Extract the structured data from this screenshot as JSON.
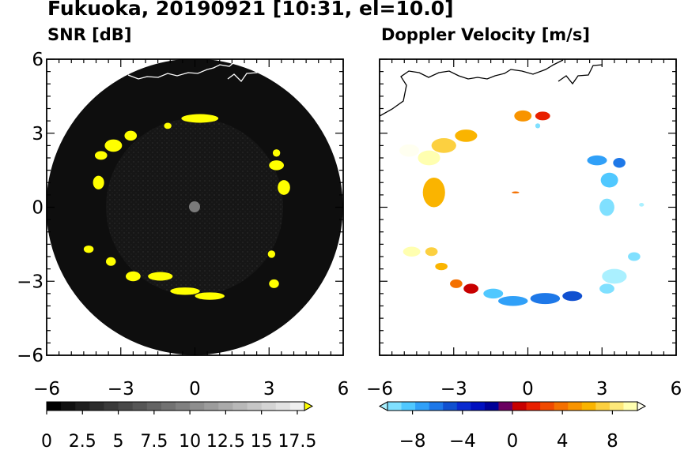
{
  "figure": {
    "title": "Fukuoka, 20190921 [10:31, el=10.0]"
  },
  "chart_data": [
    {
      "type": "heatmap",
      "title": "SNR [dB]",
      "xlim": [
        -6,
        6
      ],
      "ylim": [
        -6,
        6
      ],
      "xticks": [
        "−6",
        "−3",
        "0",
        "3",
        "6"
      ],
      "yticks": [
        "6",
        "3",
        "0",
        "−3",
        "−6"
      ],
      "grid": false,
      "range_rings_radius": 6,
      "colorbar": {
        "min": 0,
        "max": 18,
        "extend": "max",
        "tick_values": [
          0,
          2.5,
          5,
          7.5,
          10,
          12.5,
          15,
          17.5
        ],
        "tick_labels": [
          "0",
          "2.5",
          "5",
          "7.5",
          "10",
          "12.5",
          "15",
          "17.5"
        ],
        "colors": [
          "#000000",
          "#101010",
          "#1e1e1e",
          "#2c2c2c",
          "#3a3a3a",
          "#484848",
          "#565656",
          "#646464",
          "#727272",
          "#808080",
          "#8e8e8e",
          "#9c9c9c",
          "#aaaaaa",
          "#b8b8b8",
          "#c6c6c6",
          "#d4d4d4",
          "#e2e2e2",
          "#f0f0f0",
          "#ffff00"
        ]
      },
      "echo_color": "#ffff00",
      "echoes": [
        {
          "x": -1.4,
          "y": -2.8,
          "w": 1.0,
          "h": 0.35,
          "value": 18
        },
        {
          "x": -0.4,
          "y": -3.4,
          "w": 1.2,
          "h": 0.3,
          "value": 18
        },
        {
          "x": 0.6,
          "y": -3.6,
          "w": 1.2,
          "h": 0.3,
          "value": 18
        },
        {
          "x": -2.5,
          "y": -2.8,
          "w": 0.6,
          "h": 0.4,
          "value": 18
        },
        {
          "x": -3.4,
          "y": -2.2,
          "w": 0.4,
          "h": 0.35,
          "value": 18
        },
        {
          "x": -4.3,
          "y": -1.7,
          "w": 0.4,
          "h": 0.3,
          "value": 18
        },
        {
          "x": -3.9,
          "y": 1.0,
          "w": 0.45,
          "h": 0.55,
          "value": 18
        },
        {
          "x": -3.3,
          "y": 2.5,
          "w": 0.7,
          "h": 0.5,
          "value": 18
        },
        {
          "x": -3.8,
          "y": 2.1,
          "w": 0.5,
          "h": 0.35,
          "value": 18
        },
        {
          "x": -2.6,
          "y": 2.9,
          "w": 0.5,
          "h": 0.4,
          "value": 18
        },
        {
          "x": -1.1,
          "y": 3.3,
          "w": 0.3,
          "h": 0.25,
          "value": 18
        },
        {
          "x": 0.2,
          "y": 3.6,
          "w": 1.5,
          "h": 0.35,
          "value": 18
        },
        {
          "x": 3.3,
          "y": 1.7,
          "w": 0.6,
          "h": 0.4,
          "value": 18
        },
        {
          "x": 3.6,
          "y": 0.8,
          "w": 0.5,
          "h": 0.6,
          "value": 18
        },
        {
          "x": 3.2,
          "y": -3.1,
          "w": 0.4,
          "h": 0.35,
          "value": 18
        },
        {
          "x": 3.1,
          "y": -1.9,
          "w": 0.3,
          "h": 0.3,
          "value": 18
        },
        {
          "x": 3.3,
          "y": 2.2,
          "w": 0.3,
          "h": 0.3,
          "value": 18
        }
      ]
    },
    {
      "type": "heatmap",
      "title": "Doppler Velocity [m/s]",
      "xlim": [
        -6,
        6
      ],
      "ylim": [
        -6,
        6
      ],
      "xticks": [
        "−6",
        "−3",
        "0",
        "3",
        "6"
      ],
      "yticks": [],
      "grid": false,
      "colorbar": {
        "min": -10,
        "max": 10,
        "extend": "both",
        "tick_values": [
          -8,
          -4,
          0,
          4,
          8
        ],
        "tick_labels": [
          "−8",
          "−4",
          "0",
          "4",
          "8"
        ],
        "colors": [
          "#aaf0ff",
          "#80e0ff",
          "#50c8ff",
          "#30a0f8",
          "#1e78e8",
          "#1050d0",
          "#0a2ad0",
          "#0010c0",
          "#000098",
          "#6a0060",
          "#c80000",
          "#e82000",
          "#f04a00",
          "#f47000",
          "#f89400",
          "#fab400",
          "#fcd040",
          "#fde87a",
          "#ffffb0",
          "#fffff0"
        ]
      },
      "echoes": [
        {
          "x": -4.8,
          "y": 2.3,
          "w": 0.8,
          "h": 0.5,
          "value": 9
        },
        {
          "x": -4.0,
          "y": 2.0,
          "w": 0.9,
          "h": 0.6,
          "value": 8
        },
        {
          "x": -3.4,
          "y": 2.5,
          "w": 1.0,
          "h": 0.6,
          "value": 6
        },
        {
          "x": -2.5,
          "y": 2.9,
          "w": 0.9,
          "h": 0.5,
          "value": 5
        },
        {
          "x": -3.8,
          "y": 0.6,
          "w": 0.9,
          "h": 1.2,
          "value": 5
        },
        {
          "x": -0.2,
          "y": 3.7,
          "w": 0.7,
          "h": 0.45,
          "value": 4
        },
        {
          "x": 0.6,
          "y": 3.7,
          "w": 0.6,
          "h": 0.35,
          "value": 1
        },
        {
          "x": 0.4,
          "y": 3.3,
          "w": 0.2,
          "h": 0.2,
          "value": -9
        },
        {
          "x": 2.8,
          "y": 1.9,
          "w": 0.8,
          "h": 0.4,
          "value": -7
        },
        {
          "x": 3.3,
          "y": 1.1,
          "w": 0.7,
          "h": 0.6,
          "value": -8
        },
        {
          "x": 3.2,
          "y": 0.0,
          "w": 0.6,
          "h": 0.7,
          "value": -9
        },
        {
          "x": 3.7,
          "y": 1.8,
          "w": 0.5,
          "h": 0.4,
          "value": -6
        },
        {
          "x": 4.6,
          "y": 0.1,
          "w": 0.2,
          "h": 0.15,
          "value": -10
        },
        {
          "x": 3.5,
          "y": -2.8,
          "w": 1.0,
          "h": 0.6,
          "value": -10
        },
        {
          "x": 3.2,
          "y": -3.3,
          "w": 0.6,
          "h": 0.4,
          "value": -9
        },
        {
          "x": 4.3,
          "y": -2.0,
          "w": 0.5,
          "h": 0.35,
          "value": -9
        },
        {
          "x": -4.7,
          "y": -1.8,
          "w": 0.7,
          "h": 0.4,
          "value": 8
        },
        {
          "x": -3.9,
          "y": -1.8,
          "w": 0.5,
          "h": 0.35,
          "value": 6
        },
        {
          "x": -3.5,
          "y": -2.4,
          "w": 0.5,
          "h": 0.3,
          "value": 5
        },
        {
          "x": -2.9,
          "y": -3.1,
          "w": 0.5,
          "h": 0.35,
          "value": 3
        },
        {
          "x": -2.3,
          "y": -3.3,
          "w": 0.6,
          "h": 0.4,
          "value": 0.5
        },
        {
          "x": -1.4,
          "y": -3.5,
          "w": 0.8,
          "h": 0.4,
          "value": -8
        },
        {
          "x": -0.6,
          "y": -3.8,
          "w": 1.2,
          "h": 0.4,
          "value": -7
        },
        {
          "x": 0.7,
          "y": -3.7,
          "w": 1.2,
          "h": 0.45,
          "value": -6
        },
        {
          "x": 1.8,
          "y": -3.6,
          "w": 0.8,
          "h": 0.4,
          "value": -5
        },
        {
          "x": -0.5,
          "y": 0.6,
          "w": 0.3,
          "h": 0.08,
          "value": 3
        }
      ]
    }
  ]
}
